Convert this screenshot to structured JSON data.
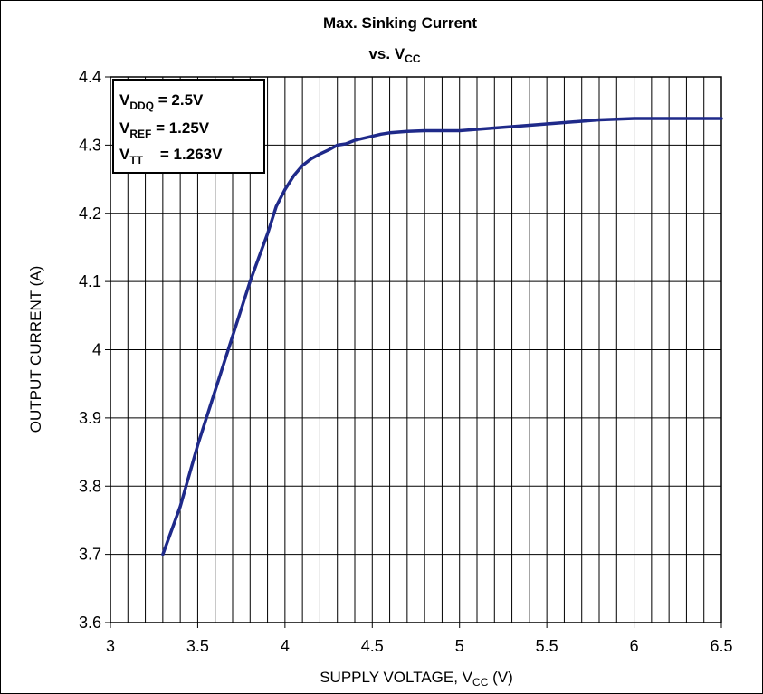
{
  "chart_data": {
    "type": "line",
    "title_main": "Max. Sinking Current",
    "title_vs": "vs. V",
    "title_vs_sub": "CC",
    "xlabel_main": "SUPPLY VOLTAGE, V",
    "xlabel_sub": "CC",
    "xlabel_tail": " (V)",
    "ylabel": "OUTPUT CURRENT (A)",
    "xlim": [
      3,
      6.5
    ],
    "ylim": [
      3.6,
      4.4
    ],
    "x_ticks": [
      "3",
      "3.5",
      "4",
      "4.5",
      "5",
      "5.5",
      "6",
      "6.5"
    ],
    "y_ticks": [
      "3.6",
      "3.7",
      "3.8",
      "3.9",
      "4",
      "4.1",
      "4.2",
      "4.3",
      "4.4"
    ],
    "grid": true,
    "x_minor_step": 0.1,
    "series": [
      {
        "color": "#1f2a8a",
        "x": [
          3.3,
          3.4,
          3.5,
          3.6,
          3.7,
          3.8,
          3.85,
          3.9,
          3.95,
          4.0,
          4.05,
          4.1,
          4.15,
          4.2,
          4.25,
          4.3,
          4.35,
          4.4,
          4.45,
          4.5,
          4.55,
          4.6,
          4.7,
          4.8,
          4.9,
          5.0,
          5.1,
          5.2,
          5.3,
          5.4,
          5.5,
          5.6,
          5.7,
          5.8,
          5.9,
          6.0,
          6.1,
          6.2,
          6.3,
          6.4,
          6.5
        ],
        "y": [
          3.7,
          3.77,
          3.86,
          3.94,
          4.02,
          4.1,
          4.135,
          4.17,
          4.21,
          4.235,
          4.255,
          4.27,
          4.28,
          4.287,
          4.293,
          4.3,
          4.302,
          4.307,
          4.31,
          4.313,
          4.316,
          4.318,
          4.32,
          4.321,
          4.321,
          4.321,
          4.323,
          4.325,
          4.327,
          4.329,
          4.331,
          4.333,
          4.335,
          4.337,
          4.338,
          4.339,
          4.339,
          4.339,
          4.339,
          4.339,
          4.339
        ]
      }
    ],
    "legend_box": {
      "position": "top-left",
      "lines": [
        {
          "main": "V",
          "sub": "DDQ",
          "rest": " = 2.5V"
        },
        {
          "main": "V",
          "sub": "REF",
          "rest": " = 1.25V"
        },
        {
          "main": "V",
          "sub": "TT",
          "rest": "    = 1.263V"
        }
      ]
    }
  }
}
